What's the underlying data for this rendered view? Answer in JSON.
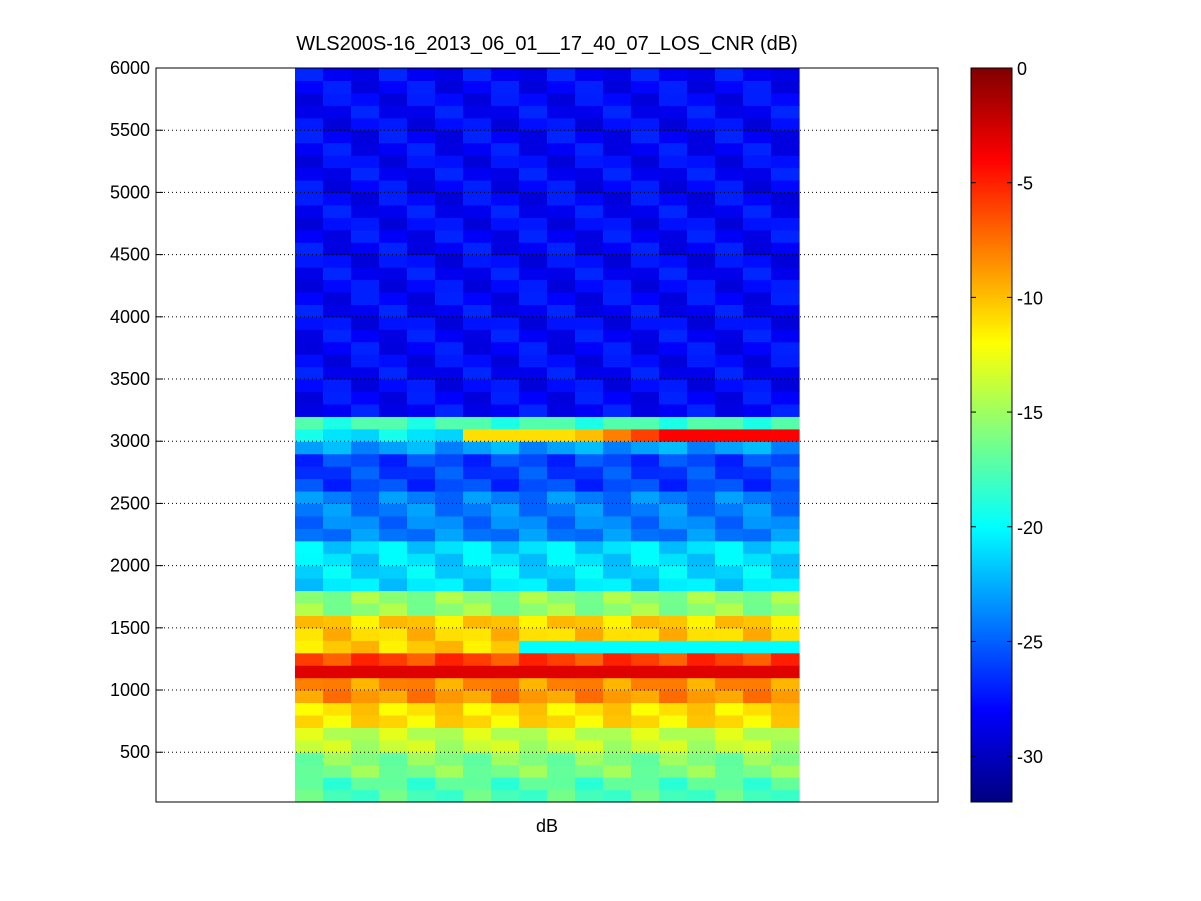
{
  "chart_data": {
    "type": "heatmap",
    "title": "WLS200S-16_2013_06_01__17_40_07_LOS_CNR (dB)",
    "xlabel": "dB",
    "ylabel": "",
    "ylim": [
      100,
      6000
    ],
    "yticks": [
      500,
      1000,
      1500,
      2000,
      2500,
      3000,
      3500,
      4000,
      4500,
      5000,
      5500,
      6000
    ],
    "y_grid": "dotted",
    "colormap": "jet",
    "colorbar": {
      "range": [
        -32,
        0
      ],
      "ticks": [
        0,
        -5,
        -10,
        -15,
        -20,
        -25,
        -30
      ],
      "placement": "right"
    },
    "columns": 18,
    "cell_height_m": 100,
    "profile": [
      {
        "min_alt": 100,
        "max_alt": 300,
        "cnr_db": -17.5
      },
      {
        "min_alt": 300,
        "max_alt": 500,
        "cnr_db": -16
      },
      {
        "min_alt": 500,
        "max_alt": 700,
        "cnr_db": -14
      },
      {
        "min_alt": 700,
        "max_alt": 900,
        "cnr_db": -11
      },
      {
        "min_alt": 900,
        "max_alt": 1100,
        "cnr_db": -8.5
      },
      {
        "min_alt": 1100,
        "max_alt": 1300,
        "cnr_db": -6
      },
      {
        "min_alt": 1300,
        "max_alt": 1600,
        "cnr_db": -10.5
      },
      {
        "min_alt": 1600,
        "max_alt": 1800,
        "cnr_db": -15.5
      },
      {
        "min_alt": 1800,
        "max_alt": 2200,
        "cnr_db": -21
      },
      {
        "min_alt": 2200,
        "max_alt": 2600,
        "cnr_db": -24
      },
      {
        "min_alt": 2600,
        "max_alt": 2900,
        "cnr_db": -26
      },
      {
        "min_alt": 2900,
        "max_alt": 3000,
        "cnr_db": -23
      },
      {
        "min_alt": 3000,
        "max_alt": 3100,
        "cnr_db": -20.5
      },
      {
        "min_alt": 3100,
        "max_alt": 3200,
        "cnr_db": -18
      },
      {
        "min_alt": 3200,
        "max_alt": 6000,
        "cnr_db": -28
      }
    ],
    "bands": [
      {
        "altitude": 3050,
        "start_column": 6,
        "end_column": 17,
        "cnr_db": [
          -11,
          -11,
          -11,
          -11,
          -10,
          -8,
          -6,
          -4,
          -4,
          -4,
          -4,
          -4
        ]
      },
      {
        "altitude": 1150,
        "start_column": 0,
        "end_column": 17,
        "cnr_db": -3
      },
      {
        "altitude": 1350,
        "start_column": 8,
        "end_column": 17,
        "cnr_db": -20
      }
    ]
  }
}
